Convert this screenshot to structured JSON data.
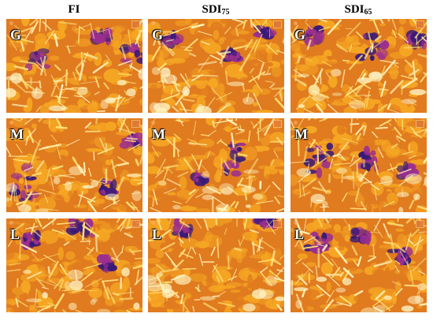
{
  "columns": [
    {
      "label": "FI",
      "sub": ""
    },
    {
      "label": "SDI",
      "sub": "75"
    },
    {
      "label": "SDI",
      "sub": "65"
    }
  ],
  "rows": [
    "G",
    "M",
    "L"
  ],
  "colors": {
    "hot": "#ffe27a",
    "warm": "#f5a623",
    "mid": "#e07b1f",
    "cool": "#9b2f8f",
    "cold": "#3a1a78"
  }
}
